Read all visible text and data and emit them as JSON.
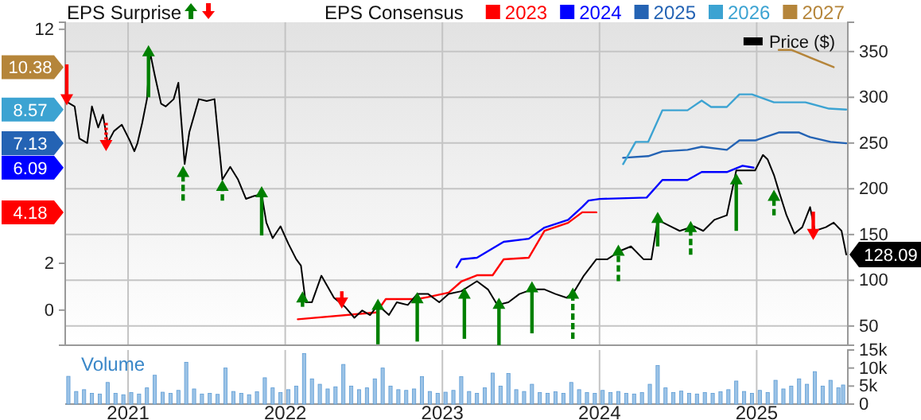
{
  "chart_data": [
    {
      "type": "line",
      "legend_title": "EPS Consensus",
      "legend": "top",
      "grid": true,
      "tick_labels": "y",
      "xlim": [
        2020.6,
        2025.58
      ],
      "xticks": [
        2021,
        2022,
        2023,
        2024,
        2025
      ],
      "ylim": [
        -1.5,
        12.3
      ],
      "yticks": [
        0,
        2,
        12
      ],
      "y2lim": [
        29,
        382
      ],
      "y2ticks": [
        50,
        100,
        150,
        200,
        250,
        300,
        350
      ],
      "annotations": [
        "EPS Surprise",
        {
          "text": "4.18",
          "y": 4.18
        },
        {
          "text": "6.09",
          "y": 6.09
        },
        {
          "text": "7.13",
          "y": 7.13
        },
        {
          "text": "8.57",
          "y": 8.57
        },
        {
          "text": "10.38",
          "y": 10.38
        }
      ],
      "series": [
        {
          "name": "2023",
          "color": "#ff0000",
          "x": [
            2022.08,
            2022.58,
            2022.64,
            2022.84,
            2022.91,
            2023.04,
            2023.12,
            2023.22,
            2023.32,
            2023.39,
            2023.55,
            2023.65,
            2023.8,
            2023.89,
            2023.98
          ],
          "values": [
            -0.39,
            -0.1,
            0.47,
            0.47,
            0.56,
            0.75,
            1.22,
            1.49,
            1.49,
            2.17,
            2.24,
            3.39,
            3.73,
            4.18,
            4.18
          ]
        },
        {
          "name": "2024",
          "color": "#0000ff",
          "x": [
            2023.09,
            2023.12,
            2023.22,
            2023.39,
            2023.55,
            2023.65,
            2023.8,
            2023.89,
            2023.93,
            2024.0,
            2024.3,
            2024.4,
            2024.56,
            2024.65,
            2024.81,
            2024.91,
            2024.98
          ],
          "values": [
            1.83,
            2.17,
            2.24,
            2.92,
            3.05,
            3.53,
            3.86,
            4.41,
            4.68,
            4.75,
            4.81,
            5.56,
            5.56,
            5.9,
            5.9,
            6.17,
            6.09
          ]
        },
        {
          "name": "2025",
          "color": "#2463b4",
          "x": [
            2024.15,
            2024.31,
            2024.4,
            2024.56,
            2024.65,
            2024.81,
            2024.89,
            2024.99,
            2025.14,
            2025.27,
            2025.34,
            2025.47,
            2025.57
          ],
          "values": [
            6.51,
            6.58,
            6.78,
            6.85,
            6.98,
            6.85,
            7.25,
            7.25,
            7.59,
            7.59,
            7.39,
            7.19,
            7.13
          ]
        },
        {
          "name": "2026",
          "color": "#3ca3d2",
          "x": [
            2024.15,
            2024.23,
            2024.31,
            2024.4,
            2024.56,
            2024.65,
            2024.71,
            2024.81,
            2024.89,
            2024.97,
            2025.11,
            2025.31,
            2025.46,
            2025.57
          ],
          "values": [
            6.24,
            7.19,
            7.19,
            8.54,
            8.54,
            8.95,
            8.68,
            8.68,
            9.22,
            9.22,
            8.88,
            8.88,
            8.61,
            8.57
          ]
        },
        {
          "name": "2027",
          "color": "#b5853a",
          "x": [
            2025.14,
            2025.22,
            2025.49
          ],
          "values": [
            11.12,
            11.12,
            10.38
          ]
        },
        {
          "name": "Price ($)",
          "color": "#000000",
          "axis": "y2",
          "x": [
            2020.6,
            2020.66,
            2020.69,
            2020.74,
            2020.77,
            2020.81,
            2020.84,
            2020.87,
            2020.91,
            2020.96,
            2021.01,
            2021.04,
            2021.06,
            2021.09,
            2021.12,
            2021.14,
            2021.17,
            2021.21,
            2021.24,
            2021.29,
            2021.32,
            2021.36,
            2021.39,
            2021.45,
            2021.5,
            2021.55,
            2021.6,
            2021.65,
            2021.7,
            2021.75,
            2021.8,
            2021.85,
            2021.88,
            2021.92,
            2021.97,
            2022.02,
            2022.07,
            2022.1,
            2022.13,
            2022.17,
            2022.23,
            2022.31,
            2022.38,
            2022.44,
            2022.49,
            2022.54,
            2022.59,
            2022.66,
            2022.71,
            2022.78,
            2022.84,
            2022.91,
            2022.98,
            2023.04,
            2023.12,
            2023.22,
            2023.29,
            2023.35,
            2023.42,
            2023.49,
            2023.57,
            2023.65,
            2023.72,
            2023.79,
            2023.84,
            2023.9,
            2023.98,
            2024.05,
            2024.13,
            2024.2,
            2024.28,
            2024.33,
            2024.37,
            2024.45,
            2024.51,
            2024.6,
            2024.66,
            2024.73,
            2024.81,
            2024.87,
            2024.94,
            2024.99,
            2025.04,
            2025.07,
            2025.11,
            2025.14,
            2025.19,
            2025.24,
            2025.29,
            2025.34,
            2025.37,
            2025.44,
            2025.49,
            2025.54,
            2025.57
          ],
          "values": [
            296,
            290,
            255,
            250,
            290,
            267,
            281,
            250,
            263,
            270,
            253,
            241,
            250,
            272,
            298,
            349,
            324,
            293,
            290,
            298,
            316,
            227,
            262,
            298,
            296,
            298,
            210,
            224,
            210,
            189,
            192,
            194,
            163,
            146,
            159,
            140,
            123,
            116,
            76,
            76,
            105,
            81,
            71,
            59,
            67,
            62,
            73,
            62,
            76,
            73,
            85,
            85,
            76,
            85,
            88,
            99,
            90,
            73,
            76,
            85,
            90,
            90,
            85,
            81,
            88,
            105,
            123,
            123,
            132,
            137,
            123,
            123,
            166,
            159,
            154,
            159,
            154,
            166,
            171,
            220,
            220,
            220,
            237,
            232,
            215,
            198,
            171,
            151,
            158,
            180,
            154,
            158,
            163,
            154,
            128.09
          ],
          "value_labels": [
            null,
            null,
            null,
            null,
            null,
            null,
            null,
            null,
            null,
            null,
            null,
            null,
            null,
            null,
            null,
            null,
            null,
            null,
            null,
            null,
            null,
            null,
            null,
            null,
            null,
            null,
            null,
            null,
            null,
            null,
            null,
            null,
            null,
            null,
            null,
            null,
            null,
            null,
            null,
            null,
            null,
            null,
            null,
            null,
            null,
            null,
            null,
            null,
            null,
            null,
            null,
            null,
            null,
            null,
            null,
            null,
            null,
            null,
            null,
            null,
            null,
            null,
            null,
            null,
            null,
            null,
            null,
            null,
            null,
            null,
            null,
            null,
            null,
            null,
            null,
            null,
            null,
            null,
            null,
            null,
            null,
            null,
            null,
            null,
            null,
            null,
            null,
            null,
            null,
            null,
            null,
            null,
            null,
            null,
            "128.09"
          ]
        },
        {
          "type": "scatter",
          "color": "#008000",
          "axis": "y2",
          "line_style": "solid",
          "marker": "triangle",
          "x": [
            2021.13,
            2021.85,
            2022.11,
            2022.59,
            2022.84,
            2023.14,
            2023.36,
            2023.57,
            2024.37,
            2024.87
          ],
          "values": [
            350,
            196,
            81,
            73,
            80,
            85,
            74,
            92,
            168,
            210
          ],
          "errors": [
            [
              300,
              350
            ],
            [
              149,
              196
            ],
            [
              71,
              81
            ],
            [
              30,
              73
            ],
            [
              33,
              80
            ],
            [
              36,
              85
            ],
            [
              29,
              74
            ],
            [
              42,
              92
            ],
            [
              137,
              168
            ],
            [
              154,
              210
            ]
          ]
        },
        {
          "type": "scatter",
          "color": "#008000",
          "axis": "y2",
          "line_style": "dashed",
          "marker": "triangle",
          "x": [
            2021.35,
            2021.6,
            2023.83,
            2024.12,
            2024.58,
            2025.11
          ],
          "values": [
            218,
            203,
            85,
            132,
            158,
            192
          ],
          "errors": [
            [
              187,
              218
            ],
            [
              187,
              203
            ],
            [
              36,
              85
            ],
            [
              99,
              132
            ],
            [
              128,
              158
            ],
            [
              171,
              192
            ]
          ]
        },
        {
          "type": "scatter",
          "color": "#ff0000",
          "axis": "y2",
          "line_style": "solid",
          "marker": "triangle",
          "x": [
            2020.61,
            2022.36,
            2025.36
          ],
          "values": [
            298,
            76,
            151
          ],
          "errors": [
            [
              298,
              336
            ],
            [
              76,
              88
            ],
            [
              151,
              175
            ]
          ]
        },
        {
          "type": "scatter",
          "color": "#ff0000",
          "axis": "y2",
          "line_style": "dotted",
          "marker": "triangle",
          "x": [
            2020.86
          ],
          "values": [
            248
          ],
          "errors": [
            [
              248,
              272
            ]
          ]
        }
      ]
    },
    {
      "type": "bar",
      "title": "Volume",
      "grid": "x",
      "xlim": [
        2020.6,
        2025.58
      ],
      "xticks": [
        2021,
        2022,
        2023,
        2024,
        2025
      ],
      "ylim": [
        0,
        15000
      ],
      "yticks": [
        0,
        {
          "value": 5000,
          "label": "5k"
        },
        {
          "value": 10000,
          "label": "10k"
        },
        {
          "value": 15000,
          "label": "15k"
        }
      ],
      "series": [
        {
          "color": "#9cc3e6",
          "x": [
            2020.62,
            2020.67,
            2020.72,
            2020.77,
            2020.82,
            2020.87,
            2020.92,
            2020.97,
            2021.02,
            2021.07,
            2021.12,
            2021.17,
            2021.22,
            2021.27,
            2021.32,
            2021.37,
            2021.42,
            2021.47,
            2021.52,
            2021.57,
            2021.62,
            2021.67,
            2021.72,
            2021.77,
            2021.82,
            2021.87,
            2021.92,
            2021.97,
            2022.02,
            2022.07,
            2022.12,
            2022.17,
            2022.22,
            2022.27,
            2022.32,
            2022.37,
            2022.42,
            2022.47,
            2022.52,
            2022.57,
            2022.62,
            2022.67,
            2022.72,
            2022.77,
            2022.82,
            2022.87,
            2022.92,
            2022.97,
            2023.02,
            2023.07,
            2023.12,
            2023.17,
            2023.22,
            2023.27,
            2023.32,
            2023.37,
            2023.42,
            2023.47,
            2023.52,
            2023.57,
            2023.62,
            2023.67,
            2023.72,
            2023.77,
            2023.82,
            2023.87,
            2023.92,
            2023.97,
            2024.02,
            2024.07,
            2024.12,
            2024.17,
            2024.22,
            2024.27,
            2024.32,
            2024.37,
            2024.42,
            2024.47,
            2024.52,
            2024.57,
            2024.62,
            2024.67,
            2024.72,
            2024.77,
            2024.82,
            2024.87,
            2024.92,
            2024.97,
            2025.02,
            2025.07,
            2025.12,
            2025.17,
            2025.22,
            2025.27,
            2025.32,
            2025.37,
            2025.42,
            2025.47,
            2025.52,
            2025.55
          ],
          "values": [
            7700,
            3500,
            4000,
            3000,
            2800,
            6000,
            3000,
            2600,
            3200,
            2800,
            4500,
            8000,
            3300,
            3000,
            3800,
            11600,
            4200,
            2800,
            3000,
            2700,
            10000,
            3500,
            3000,
            2600,
            3400,
            7300,
            4500,
            3200,
            4000,
            5000,
            14000,
            7000,
            5500,
            4200,
            4800,
            11000,
            5000,
            4000,
            4500,
            7000,
            10000,
            5000,
            4000,
            3800,
            4200,
            7600,
            3500,
            3000,
            3300,
            3800,
            7600,
            3500,
            3000,
            4500,
            8600,
            5000,
            8500,
            4000,
            3500,
            5500,
            3200,
            3000,
            3400,
            3000,
            6000,
            4000,
            3200,
            3000,
            3800,
            3200,
            3500,
            3000,
            2800,
            3200,
            5500,
            10700,
            4500,
            3200,
            3600,
            3000,
            2800,
            3200,
            3000,
            3400,
            4000,
            6400,
            3500,
            3000,
            3800,
            3200,
            6600,
            4200,
            5000,
            7000,
            5500,
            9000,
            5000,
            6600,
            4500,
            5300
          ]
        }
      ]
    }
  ]
}
